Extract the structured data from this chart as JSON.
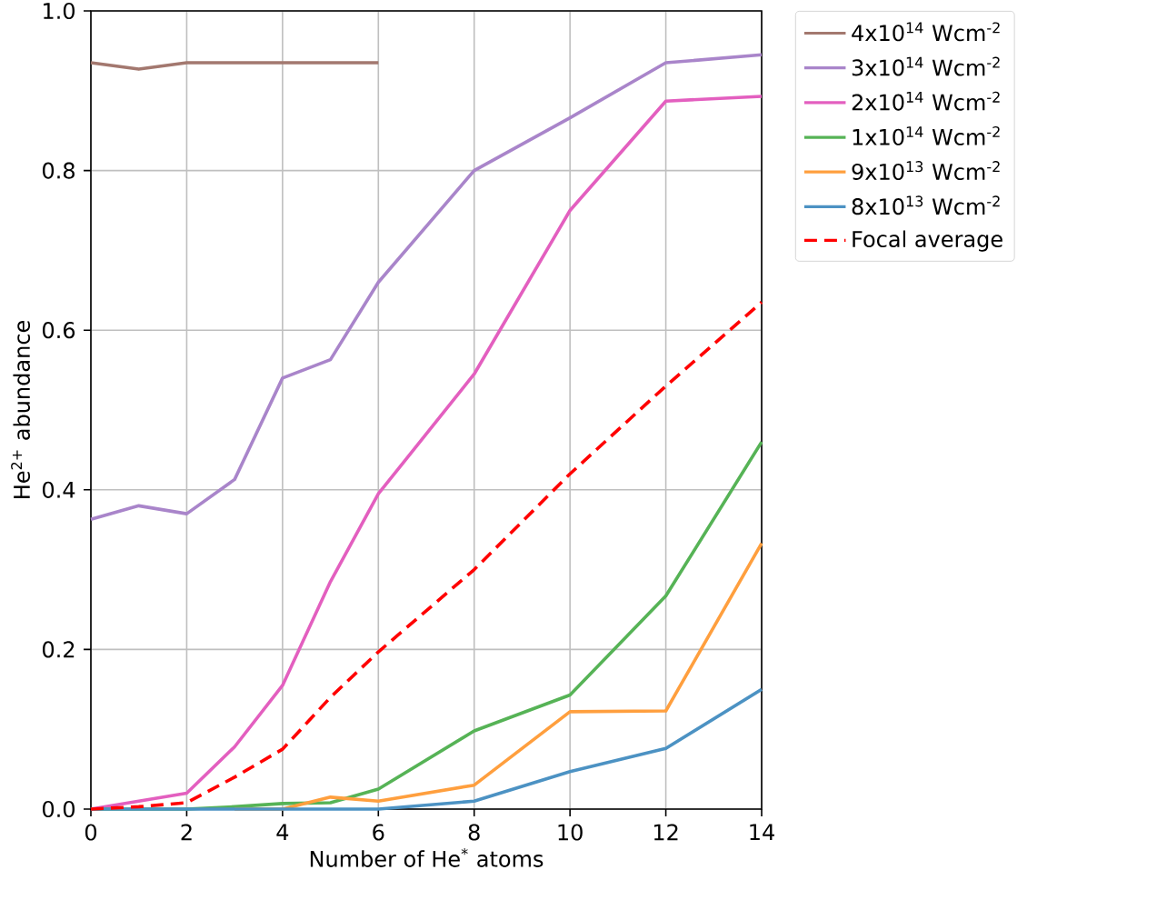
{
  "chart_data": {
    "type": "line",
    "xlabel": "Number of He$^{*}$ atoms",
    "ylabel": "He$^{2+}$ abundance",
    "x": [
      0,
      1,
      2,
      3,
      4,
      5,
      6,
      8,
      10,
      12,
      14
    ],
    "xlim": [
      0,
      14
    ],
    "ylim": [
      0,
      1
    ],
    "xticks": [
      0,
      2,
      4,
      6,
      8,
      10,
      12,
      14
    ],
    "yticks": [
      {
        "value": 0,
        "label": "0.0"
      },
      {
        "value": 0.2,
        "label": "0.2"
      },
      {
        "value": 0.4,
        "label": "0.4"
      },
      {
        "value": 0.6,
        "label": "0.6"
      },
      {
        "value": 0.8,
        "label": "0.8"
      },
      {
        "value": 1,
        "label": "1.0"
      }
    ],
    "grid": true,
    "legend": "top right",
    "series": [
      {
        "name": "4x10$^{14}$ Wcm$^{-2}$",
        "color": "#a3786f",
        "x": [
          0,
          1,
          2,
          3,
          4,
          5,
          6
        ],
        "values": [
          0.935,
          0.927,
          0.935,
          0.935,
          0.935,
          0.935,
          0.935
        ]
      },
      {
        "name": "3x10$^{14}$ Wcm$^{-2}$",
        "color": "#a985ca",
        "values": [
          0.363,
          0.38,
          0.37,
          0.413,
          0.54,
          0.563,
          0.66,
          0.8,
          0.866,
          0.935,
          0.945
        ]
      },
      {
        "name": "2x10$^{14}$ Wcm$^{-2}$",
        "color": "#e35fbf",
        "values": [
          0,
          0.01,
          0.02,
          0.078,
          0.155,
          0.285,
          0.395,
          0.545,
          0.75,
          0.887,
          0.893
        ]
      },
      {
        "name": "1x10$^{14}$ Wcm$^{-2}$",
        "color": "#56b356",
        "values": [
          0,
          0,
          0,
          0.003,
          0.007,
          0.008,
          0.025,
          0.098,
          0.143,
          0.267,
          0.46
        ]
      },
      {
        "name": "9x10$^{13}$ Wcm$^{-2}$",
        "color": "#ff9f3e",
        "values": [
          null,
          null,
          null,
          0,
          0,
          0.015,
          0.01,
          0.03,
          0.122,
          0.123,
          0.333
        ]
      },
      {
        "name": "8x10$^{13}$ Wcm$^{-2}$",
        "color": "#4c92c3",
        "values": [
          0,
          0,
          0,
          0,
          0,
          0,
          0,
          0.01,
          0.047,
          0.076,
          0.15
        ]
      },
      {
        "name": "Focal average",
        "color": "#ff0000",
        "line_style": "dashed",
        "values": [
          0,
          0.003,
          0.008,
          0.04,
          0.075,
          0.14,
          0.197,
          0.3,
          0.42,
          0.53,
          0.635
        ]
      }
    ]
  }
}
